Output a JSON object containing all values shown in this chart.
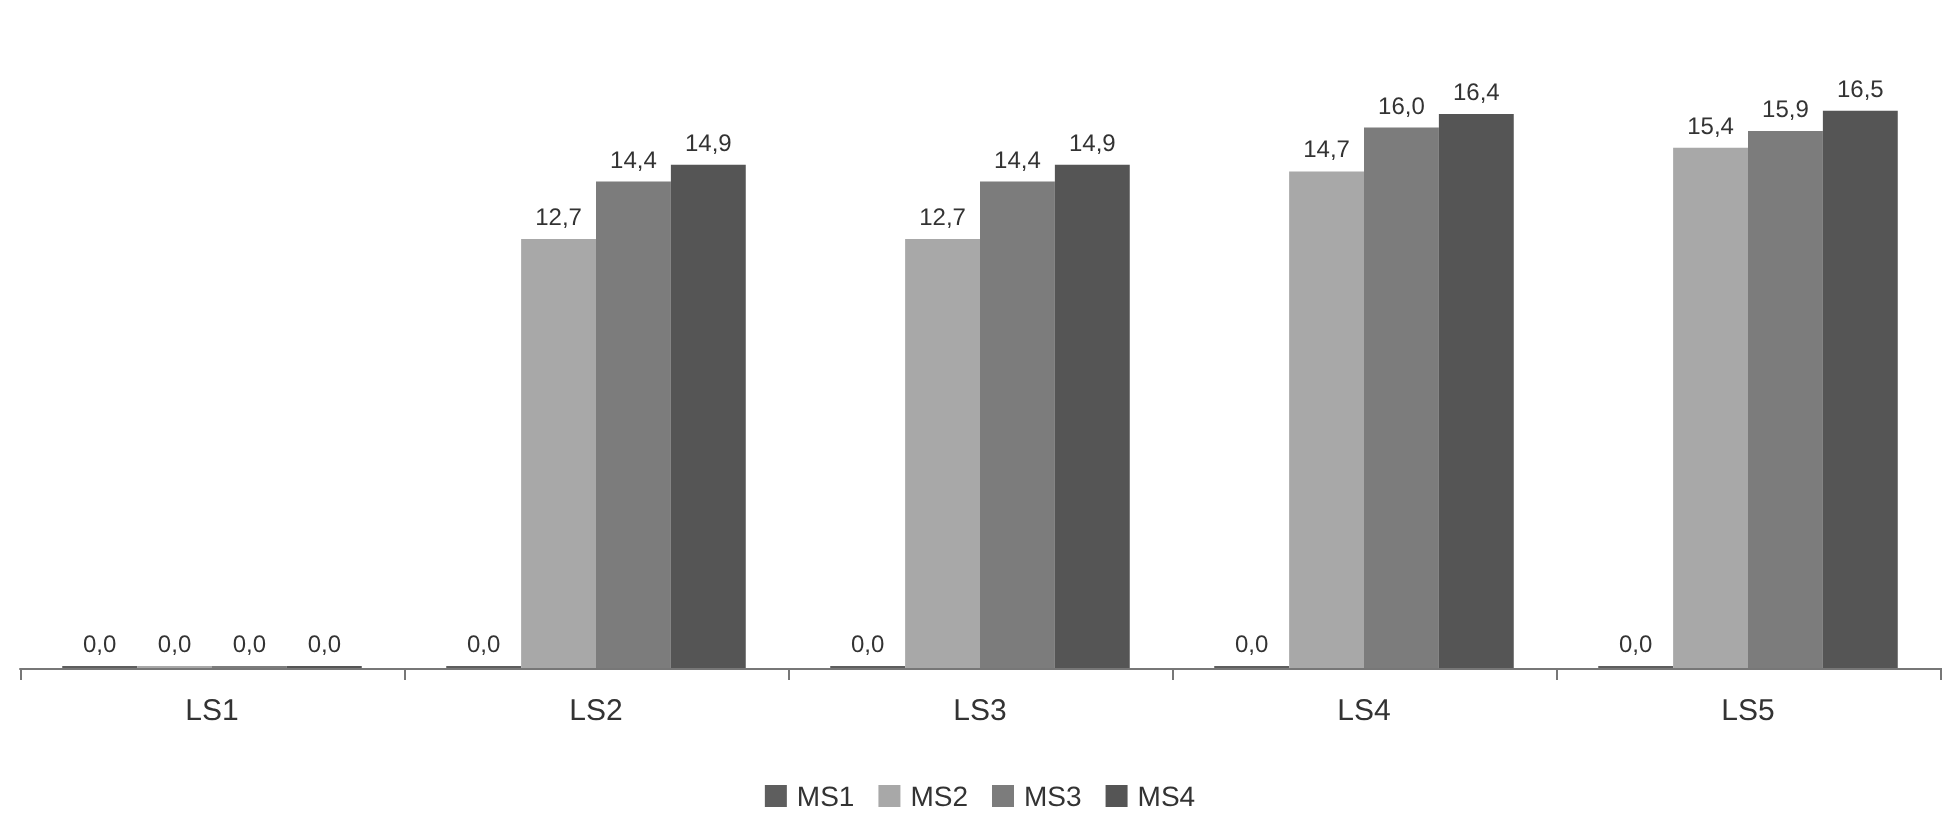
{
  "chart_data": {
    "type": "bar",
    "categories": [
      "LS1",
      "LS2",
      "LS3",
      "LS4",
      "LS5"
    ],
    "series": [
      {
        "name": "MS1",
        "color": "#5e5e5e",
        "values": [
          0,
          0,
          0,
          0,
          0
        ],
        "value_labels": [
          "0,0",
          "0,0",
          "0,0",
          "0,0",
          "0,0"
        ]
      },
      {
        "name": "MS2",
        "color": "#a8a8a8",
        "values": [
          0,
          12.7,
          12.7,
          14.7,
          15.4
        ],
        "value_labels": [
          "0,0",
          "12,7",
          "12,7",
          "14,7",
          "15,4"
        ]
      },
      {
        "name": "MS3",
        "color": "#7c7c7c",
        "values": [
          0,
          14.4,
          14.4,
          16.0,
          15.9
        ],
        "value_labels": [
          "0,0",
          "14,4",
          "14,4",
          "16,0",
          "15,9"
        ]
      },
      {
        "name": "MS4",
        "color": "#555555",
        "values": [
          0,
          14.9,
          14.9,
          16.4,
          16.5
        ],
        "value_labels": [
          "0,0",
          "14,9",
          "14,9",
          "16,4",
          "16,5"
        ]
      }
    ],
    "legend": "bottom"
  }
}
